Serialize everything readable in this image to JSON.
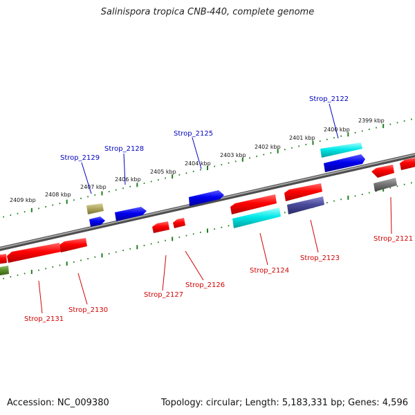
{
  "title": "Salinispora tropica CNB-440, complete genome",
  "footer": {
    "accession": "Accession: NC_009380",
    "topology": "Topology: circular; Length: 5,183,331 bp; Genes: 4,596"
  },
  "colors": {
    "forward_label": "#0000c0",
    "reverse_label": "#d00000",
    "backbone": "#808080",
    "tick": "#1a7f1a"
  },
  "kbp_labels": [
    "2399 kbp",
    "2400 kbp",
    "2401 kbp",
    "2402 kbp",
    "2403 kbp",
    "2404 kbp",
    "2405 kbp",
    "2406 kbp",
    "2407 kbp",
    "2408 kbp",
    "2409 kbp"
  ],
  "forward_genes": [
    "Strop_2122",
    "Strop_2125",
    "Strop_2128",
    "Strop_2129"
  ],
  "reverse_genes": [
    "Strop_2121",
    "Strop_2123",
    "Strop_2124",
    "Strop_2126",
    "Strop_2127",
    "Strop_2130",
    "Strop_2131"
  ]
}
